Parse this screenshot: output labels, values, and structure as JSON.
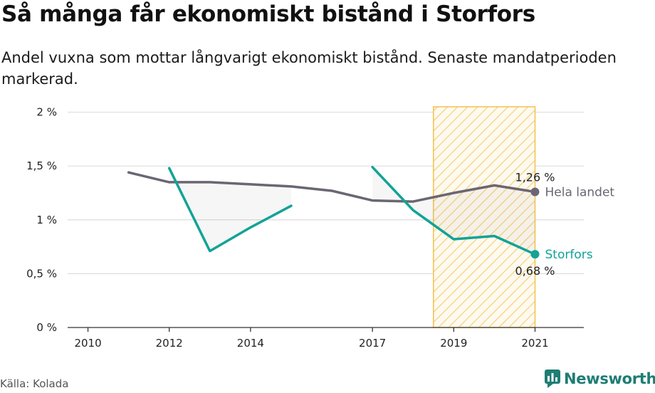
{
  "header": {
    "title": "Så många får ekonomiskt bistånd i Storfors",
    "subtitle": "Andel vuxna som mottar långvarigt ekonomiskt bistånd. Senaste mandatperioden markerad."
  },
  "footer": {
    "source": "Källa: Kolada",
    "brand": "Newsworthy"
  },
  "colors": {
    "storfors": "#12a396",
    "hela_landet": "#6b6672",
    "highlight": "#f2c14e",
    "grid": "#dddddd",
    "brand": "#1e7d74"
  },
  "icons": {
    "brand_logo": "newsworthy-logo-icon"
  },
  "chart_data": {
    "type": "line",
    "title": "Så många får ekonomiskt bistånd i Storfors",
    "x_ticks": [
      2010,
      2012,
      2014,
      2017,
      2019,
      2021
    ],
    "y_ticks": [
      0,
      0.5,
      1,
      1.5,
      2
    ],
    "y_tick_labels": [
      "0 %",
      "0,5 %",
      "1 %",
      "1,5 %",
      "2 %"
    ],
    "xlim": [
      2009.5,
      2022.2
    ],
    "ylim": [
      0,
      2.05
    ],
    "grid": "horizontal",
    "highlight_period": {
      "from": 2018.5,
      "to": 2021
    },
    "series": [
      {
        "name": "Hela landet",
        "color": "#6b6672",
        "points": [
          [
            2011,
            1.44
          ],
          [
            2012,
            1.35
          ],
          [
            2013,
            1.35
          ],
          [
            2014,
            1.33
          ],
          [
            2015,
            1.31
          ],
          [
            2016,
            1.27
          ],
          [
            2017,
            1.18
          ],
          [
            2018,
            1.17
          ],
          [
            2019,
            1.25
          ],
          [
            2020,
            1.32
          ],
          [
            2021,
            1.26
          ]
        ],
        "end_value_label": "1,26 %",
        "end_name_label": "Hela landet"
      },
      {
        "name": "Storfors",
        "color": "#12a396",
        "segments": [
          [
            [
              2012,
              1.48
            ],
            [
              2013,
              0.71
            ],
            [
              2014,
              0.93
            ],
            [
              2015,
              1.13
            ]
          ],
          [
            [
              2017,
              1.49
            ],
            [
              2018,
              1.09
            ],
            [
              2019,
              0.82
            ],
            [
              2020,
              0.85
            ],
            [
              2021,
              0.68
            ]
          ]
        ],
        "end_value_label": "0,68 %",
        "end_name_label": "Storfors"
      }
    ]
  }
}
